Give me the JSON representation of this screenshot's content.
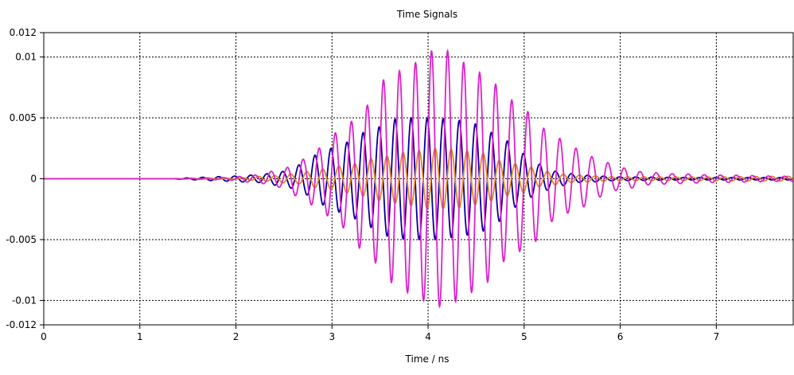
{
  "chart_data": {
    "type": "line",
    "title": "Time Signals",
    "xlabel": "Time / ns",
    "ylabel": "",
    "xlim": [
      0,
      7.8
    ],
    "ylim": [
      -0.012,
      0.012
    ],
    "grid": true,
    "legend": "none",
    "x_ticks": [
      0,
      1,
      2,
      3,
      4,
      5,
      6,
      7
    ],
    "x_tick_labels": [
      "0",
      "1",
      "2",
      "3",
      "4",
      "5",
      "6",
      "7"
    ],
    "y_ticks": [
      0.012,
      0.01,
      0.005,
      0,
      -0.005,
      -0.01,
      -0.012
    ],
    "y_tick_labels": [
      "0.012",
      "0.01",
      "0.005",
      "0",
      "-0.005",
      "-0.01",
      "-0.012"
    ],
    "series": [
      {
        "color": "#00009c",
        "period_ns": 0.167,
        "phase_ns": 0.15,
        "peaks": [
          [
            1.9,
            0.0002
          ],
          [
            2.2,
            0.0003
          ],
          [
            2.5,
            0.0006
          ],
          [
            2.7,
            0.0012
          ],
          [
            2.85,
            0.002
          ],
          [
            3.0,
            0.0025
          ],
          [
            3.15,
            0.003
          ],
          [
            3.4,
            0.004
          ],
          [
            3.65,
            0.0049
          ],
          [
            3.85,
            0.005
          ],
          [
            4.05,
            0.005
          ],
          [
            4.3,
            0.0048
          ],
          [
            4.5,
            0.0045
          ],
          [
            4.75,
            0.0035
          ],
          [
            4.95,
            0.0022
          ],
          [
            5.15,
            0.0012
          ],
          [
            5.35,
            0.0006
          ],
          [
            5.6,
            0.0003
          ],
          [
            6.0,
            0.00015
          ],
          [
            6.8,
            0.0001
          ],
          [
            7.8,
            0.0001
          ]
        ]
      },
      {
        "color": "#e08a1e",
        "period_ns": 0.167,
        "phase_ns": 0.065,
        "peaks": [
          [
            2.0,
            5e-05
          ],
          [
            2.3,
            0.0002
          ],
          [
            2.6,
            0.0004
          ],
          [
            2.9,
            0.0008
          ],
          [
            3.2,
            0.0012
          ],
          [
            3.5,
            0.0018
          ],
          [
            3.8,
            0.0022
          ],
          [
            4.05,
            0.0025
          ],
          [
            4.3,
            0.0024
          ],
          [
            4.55,
            0.0021
          ],
          [
            4.8,
            0.0014
          ],
          [
            5.0,
            0.0011
          ],
          [
            5.2,
            0.0006
          ],
          [
            5.5,
            0.0003
          ],
          [
            6.0,
            0.00015
          ],
          [
            6.8,
            0.00015
          ],
          [
            7.8,
            0.0002
          ]
        ]
      },
      {
        "color": "#dd22cc",
        "period_ns": 0.167,
        "phase_ns": 0.195,
        "peaks": [
          [
            1.9,
            0.0001
          ],
          [
            2.2,
            0.0003
          ],
          [
            2.45,
            0.0007
          ],
          [
            2.7,
            0.0016
          ],
          [
            2.85,
            0.0025
          ],
          [
            3.1,
            0.004
          ],
          [
            3.35,
            0.006
          ],
          [
            3.6,
            0.0085
          ],
          [
            3.85,
            0.0095
          ],
          [
            4.05,
            0.0105
          ],
          [
            4.2,
            0.0105
          ],
          [
            4.4,
            0.0095
          ],
          [
            4.6,
            0.0085
          ],
          [
            4.85,
            0.0065
          ],
          [
            5.05,
            0.0055
          ],
          [
            5.3,
            0.0035
          ],
          [
            5.55,
            0.0025
          ],
          [
            5.8,
            0.0015
          ],
          [
            6.0,
            0.0009
          ],
          [
            6.3,
            0.0005
          ],
          [
            6.6,
            0.0004
          ],
          [
            7.0,
            0.0003
          ],
          [
            7.8,
            0.0002
          ]
        ]
      }
    ]
  }
}
